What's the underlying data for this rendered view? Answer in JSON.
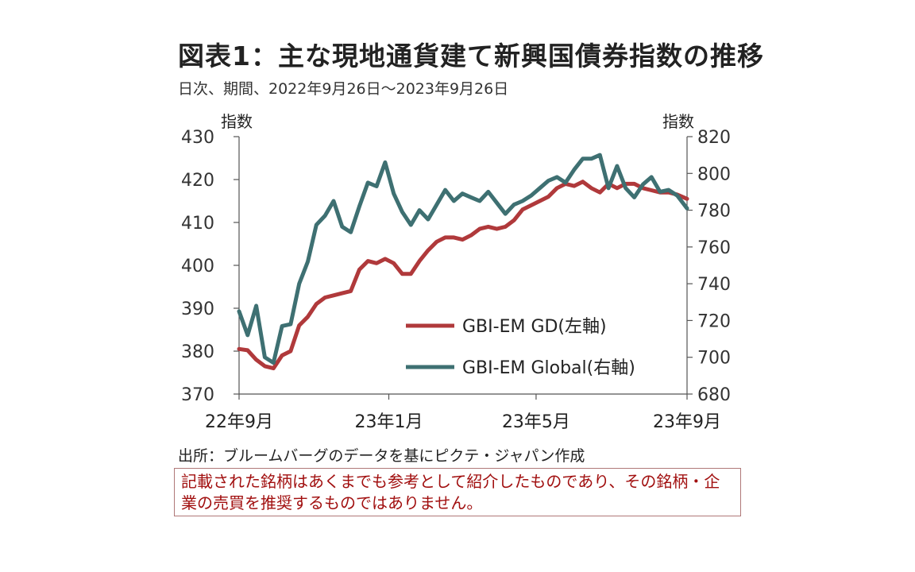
{
  "title": "図表1：主な現地通貨建て新興国債券指数の推移",
  "subtitle": "日次、期間、2022年9月26日～2023年9月26日",
  "source": "出所：ブルームバーグのデータを基にピクテ・ジャパン作成",
  "disclaimer": "記載された銘柄はあくまでも参考として紹介したものであり、その銘柄・企業の売買を推奨するものではありません。",
  "colors": {
    "gd": "#b0393b",
    "global": "#3e7072",
    "axis": "#555555"
  },
  "chart_data": {
    "type": "line",
    "left_axis": {
      "label": "指数",
      "ylim": [
        370,
        430
      ],
      "ticks": [
        "370",
        "380",
        "390",
        "400",
        "410",
        "420",
        "430"
      ]
    },
    "right_axis": {
      "label": "指数",
      "ylim": [
        680,
        820
      ],
      "ticks": [
        "680",
        "700",
        "720",
        "740",
        "760",
        "780",
        "800",
        "820"
      ]
    },
    "x_ticks": [
      "22年9月",
      "23年1月",
      "23年5月",
      "23年9月"
    ],
    "x_range": [
      "2022-09-26",
      "2023-09-26"
    ],
    "legend": "center-right",
    "series": [
      {
        "name": "GBI-EM GD(左軸)",
        "axis": "left",
        "color": "#b0393b",
        "x": [
          "2022-09-26",
          "2022-10-03",
          "2022-10-10",
          "2022-10-17",
          "2022-10-24",
          "2022-10-31",
          "2022-11-07",
          "2022-11-14",
          "2022-11-21",
          "2022-11-28",
          "2022-12-05",
          "2022-12-12",
          "2022-12-19",
          "2022-12-26",
          "2023-01-02",
          "2023-01-09",
          "2023-01-16",
          "2023-01-23",
          "2023-01-30",
          "2023-02-06",
          "2023-02-13",
          "2023-02-20",
          "2023-02-27",
          "2023-03-06",
          "2023-03-13",
          "2023-03-20",
          "2023-03-27",
          "2023-04-03",
          "2023-04-10",
          "2023-04-17",
          "2023-04-24",
          "2023-05-01",
          "2023-05-08",
          "2023-05-15",
          "2023-05-22",
          "2023-05-29",
          "2023-06-05",
          "2023-06-12",
          "2023-06-19",
          "2023-06-26",
          "2023-07-03",
          "2023-07-10",
          "2023-07-17",
          "2023-07-24",
          "2023-07-31",
          "2023-08-07",
          "2023-08-14",
          "2023-08-21",
          "2023-08-28",
          "2023-09-04",
          "2023-09-11",
          "2023-09-18",
          "2023-09-26"
        ],
        "values": [
          380.5,
          380.2,
          378.0,
          376.5,
          376.0,
          379.0,
          380.0,
          386.0,
          388.0,
          391.0,
          392.5,
          393.0,
          393.5,
          394.0,
          399.0,
          401.0,
          400.5,
          401.5,
          400.5,
          398.0,
          398.0,
          401.0,
          403.5,
          405.5,
          406.5,
          406.5,
          406.0,
          407.0,
          408.5,
          409.0,
          408.5,
          409.0,
          410.5,
          413.0,
          414.0,
          415.0,
          416.0,
          418.0,
          419.0,
          418.5,
          419.5,
          418.0,
          417.0,
          419.0,
          418.0,
          419.0,
          419.0,
          418.0,
          417.5,
          417.0,
          417.0,
          416.5,
          415.5
        ]
      },
      {
        "name": "GBI-EM Global(右軸)",
        "axis": "right",
        "color": "#3e7072",
        "x": [
          "2022-09-26",
          "2022-10-03",
          "2022-10-10",
          "2022-10-17",
          "2022-10-24",
          "2022-10-31",
          "2022-11-07",
          "2022-11-14",
          "2022-11-21",
          "2022-11-28",
          "2022-12-05",
          "2022-12-12",
          "2022-12-19",
          "2022-12-26",
          "2023-01-02",
          "2023-01-09",
          "2023-01-16",
          "2023-01-23",
          "2023-01-30",
          "2023-02-06",
          "2023-02-13",
          "2023-02-20",
          "2023-02-27",
          "2023-03-06",
          "2023-03-13",
          "2023-03-20",
          "2023-03-27",
          "2023-04-03",
          "2023-04-10",
          "2023-04-17",
          "2023-04-24",
          "2023-05-01",
          "2023-05-08",
          "2023-05-15",
          "2023-05-22",
          "2023-05-29",
          "2023-06-05",
          "2023-06-12",
          "2023-06-19",
          "2023-06-26",
          "2023-07-03",
          "2023-07-10",
          "2023-07-17",
          "2023-07-24",
          "2023-07-31",
          "2023-08-07",
          "2023-08-14",
          "2023-08-21",
          "2023-08-28",
          "2023-09-04",
          "2023-09-11",
          "2023-09-18",
          "2023-09-26"
        ],
        "values": [
          725,
          712,
          728,
          700,
          697,
          717,
          718,
          740,
          752,
          772,
          777,
          785,
          771,
          768,
          782,
          795,
          793,
          806,
          789,
          779,
          772,
          780,
          775,
          783,
          791,
          785,
          789,
          787,
          785,
          790,
          784,
          778,
          783,
          785,
          788,
          792,
          796,
          798,
          795,
          802,
          808,
          808,
          810,
          792,
          804,
          792,
          787,
          794,
          798,
          790,
          791,
          788,
          781
        ]
      }
    ]
  }
}
